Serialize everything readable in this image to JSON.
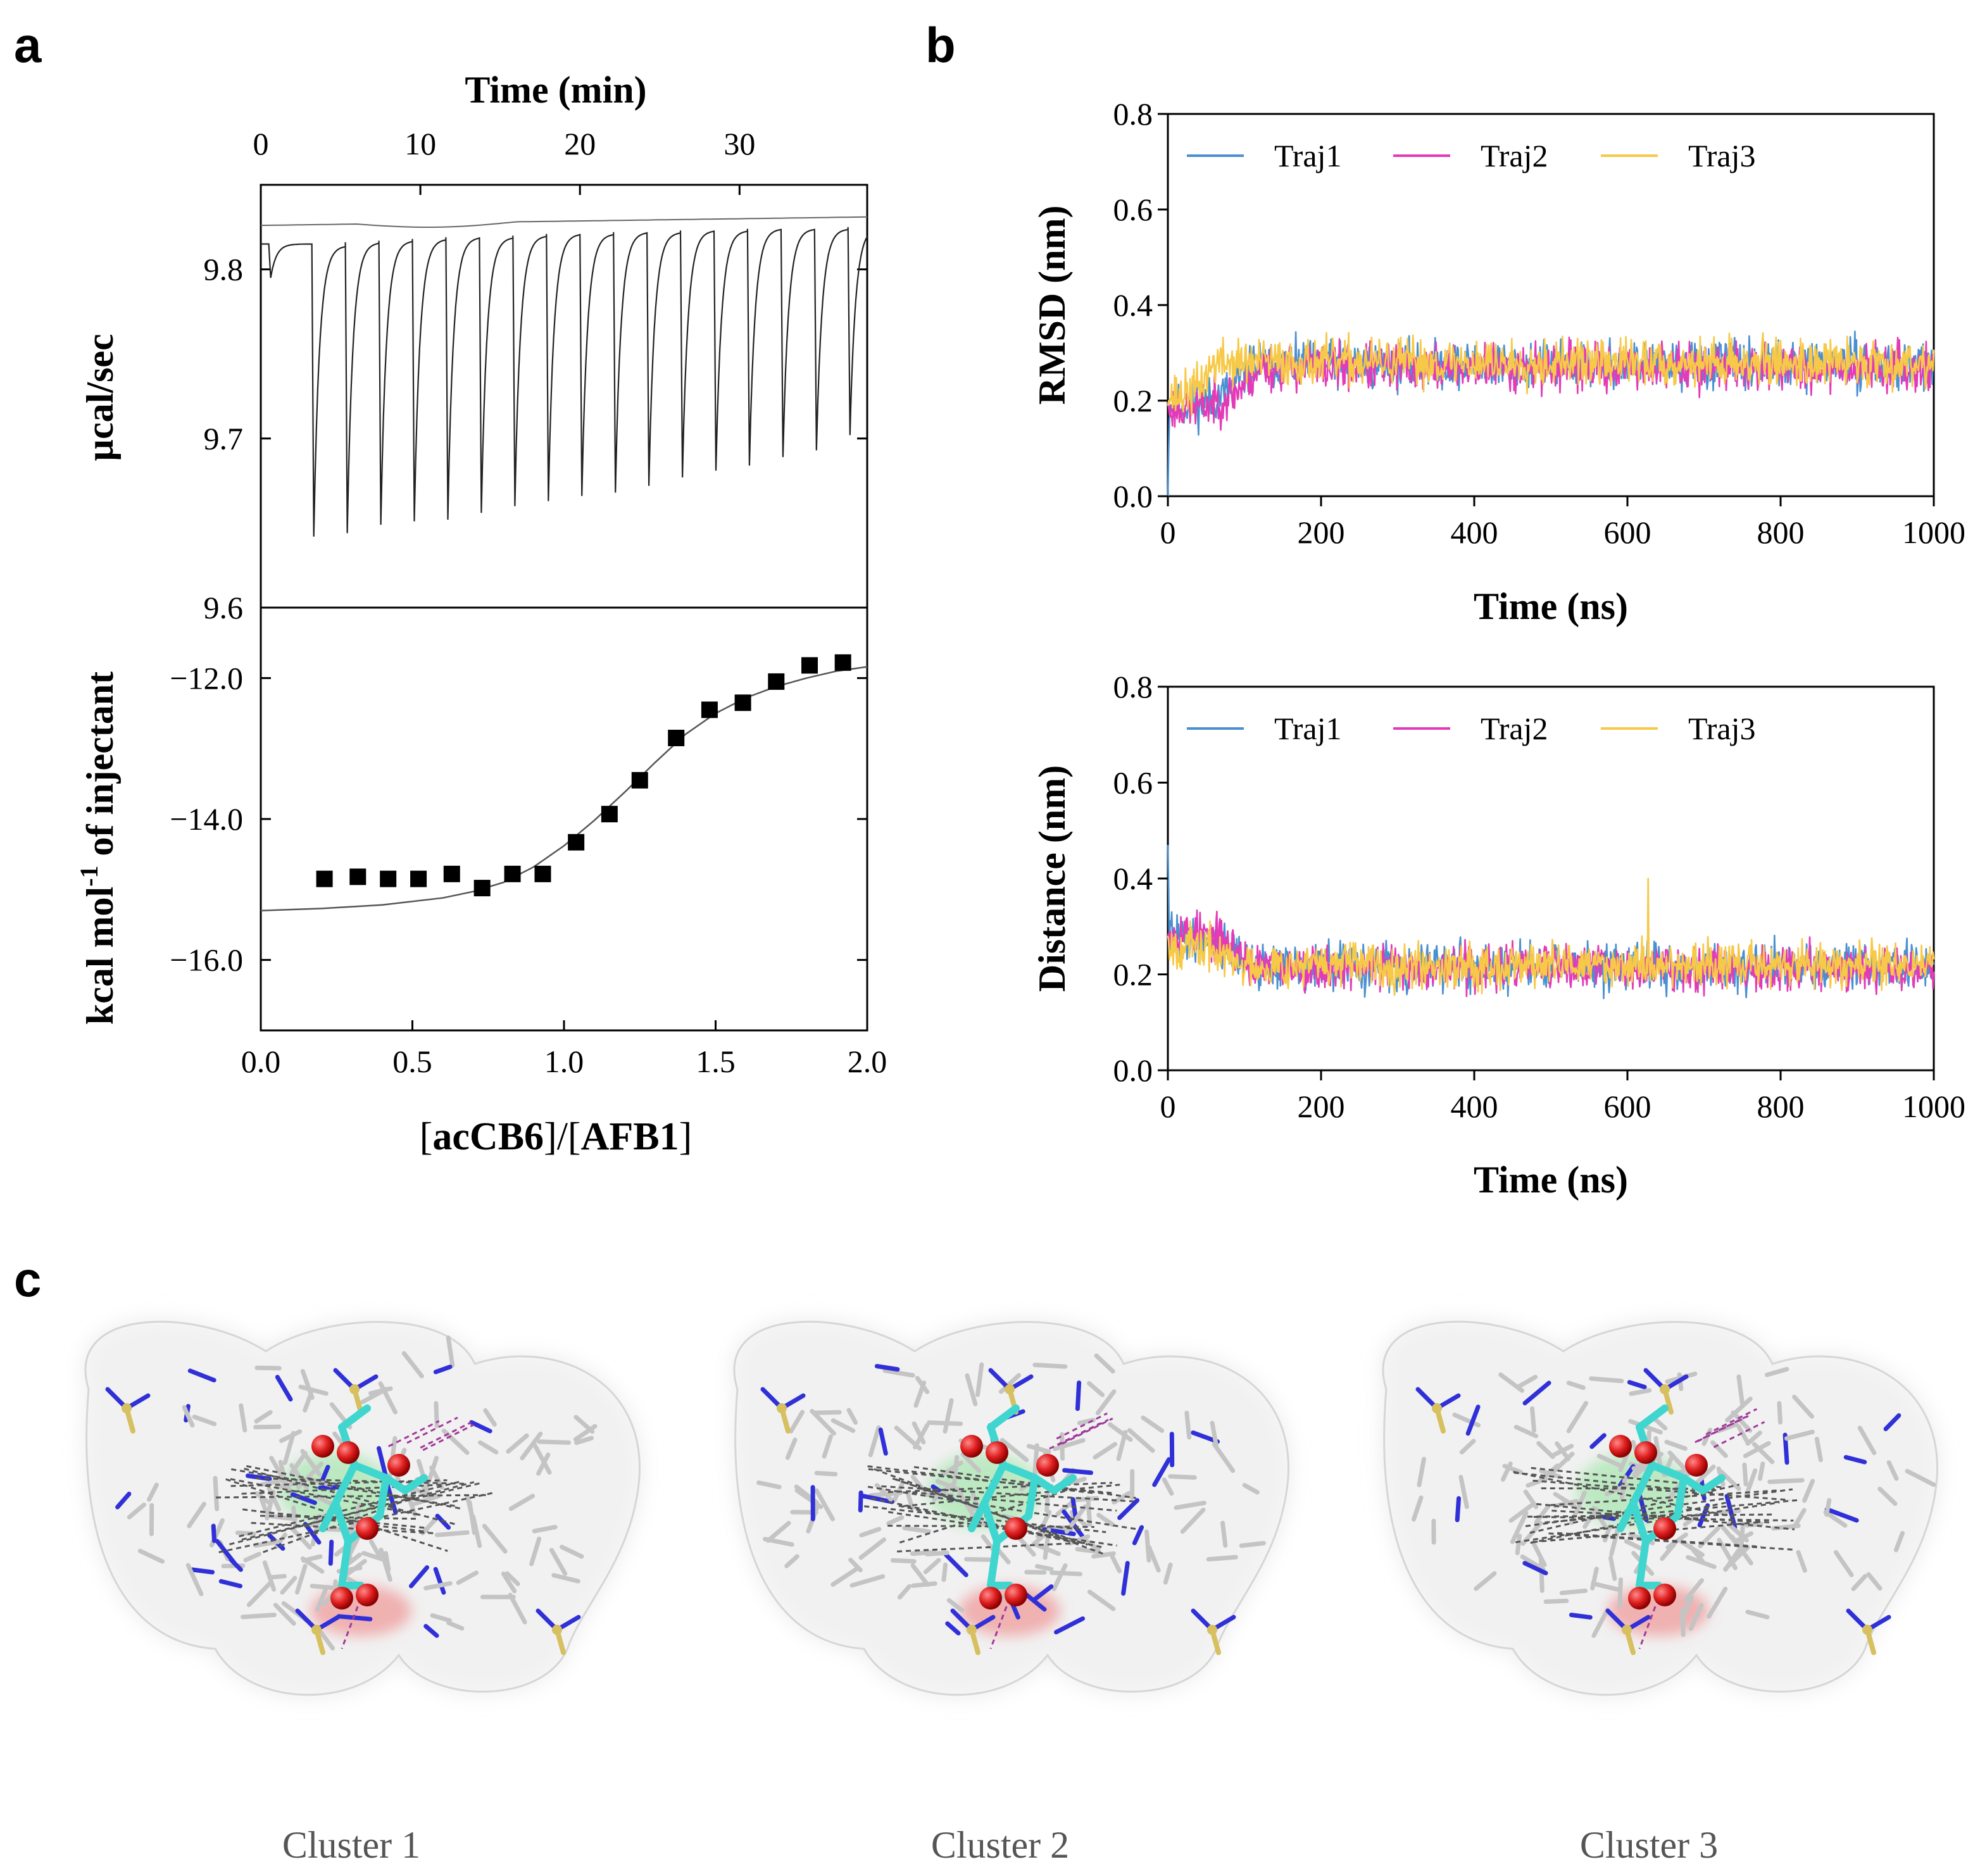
{
  "panels": {
    "a": "a",
    "b": "b",
    "c": "c"
  },
  "chart_data": [
    {
      "id": "itc-raw",
      "type": "line",
      "title": "",
      "xlabel": "Time (min)",
      "ylabel": "µcal/sec",
      "xlim": [
        0,
        38
      ],
      "ylim": [
        9.6,
        9.85
      ],
      "xticks": [
        0,
        10,
        20,
        30
      ],
      "yticks": [
        9.6,
        9.7,
        9.8
      ],
      "baseline": {
        "start": 9.826,
        "end": 9.831
      },
      "injections": {
        "times": [
          0.5,
          3.2,
          5.3,
          7.4,
          9.5,
          11.6,
          13.7,
          15.8,
          17.9,
          20.0,
          22.1,
          24.2,
          26.3,
          28.4,
          30.5,
          32.6,
          34.7,
          36.8
        ],
        "peak_min": [
          9.795,
          9.642,
          9.644,
          9.649,
          9.651,
          9.652,
          9.656,
          9.66,
          9.663,
          9.666,
          9.668,
          9.672,
          9.677,
          9.681,
          9.684,
          9.689,
          9.693,
          9.702
        ],
        "pre_level": [
          9.815,
          9.814,
          9.816,
          9.817,
          9.818,
          9.819,
          9.819,
          9.82,
          9.821,
          9.821,
          9.822,
          9.822,
          9.823,
          9.823,
          9.824,
          9.824,
          9.824,
          9.825
        ]
      }
    },
    {
      "id": "itc-integrated",
      "type": "scatter",
      "title": "",
      "xlabel_parts": [
        "[",
        "acCB6",
        "]/[",
        "AFB1",
        "]"
      ],
      "ylabel_parts": [
        "kcal mol",
        "-1",
        " of injectant"
      ],
      "xlim": [
        0.0,
        2.0
      ],
      "ylim": [
        -17.0,
        -11.0
      ],
      "xticks": [
        "0.0",
        "0.5",
        "1.0",
        "1.5",
        "2.0"
      ],
      "yticks": [
        "−12.0",
        "−14.0",
        "−16.0"
      ],
      "ytick_values": [
        -12.0,
        -14.0,
        -16.0
      ],
      "x": [
        0.21,
        0.32,
        0.42,
        0.52,
        0.63,
        0.73,
        0.83,
        0.93,
        1.04,
        1.15,
        1.25,
        1.37,
        1.48,
        1.59,
        1.7,
        1.81,
        1.92
      ],
      "y": [
        -14.85,
        -14.82,
        -14.85,
        -14.85,
        -14.78,
        -14.98,
        -14.78,
        -14.78,
        -14.33,
        -13.93,
        -13.45,
        -12.85,
        -12.45,
        -12.35,
        -12.05,
        -11.82,
        -11.78
      ],
      "fit": {
        "x": [
          0.0,
          0.2,
          0.4,
          0.6,
          0.7,
          0.8,
          0.9,
          1.0,
          1.1,
          1.2,
          1.3,
          1.4,
          1.5,
          1.6,
          1.7,
          1.8,
          1.9,
          2.0
        ],
        "y": [
          -15.3,
          -15.27,
          -15.22,
          -15.12,
          -15.03,
          -14.9,
          -14.68,
          -14.38,
          -14.02,
          -13.62,
          -13.2,
          -12.8,
          -12.5,
          -12.28,
          -12.12,
          -12.0,
          -11.9,
          -11.84
        ]
      }
    },
    {
      "id": "rmsd",
      "type": "line",
      "title": "",
      "xlabel": "Time (ns)",
      "ylabel": "RMSD (nm)",
      "xlim": [
        0,
        1000
      ],
      "ylim": [
        0.0,
        0.8
      ],
      "xticks": [
        0,
        200,
        400,
        600,
        800,
        1000
      ],
      "yticks": [
        "0.0",
        "0.2",
        "0.4",
        "0.6",
        "0.8"
      ],
      "ytick_values": [
        0.0,
        0.2,
        0.4,
        0.6,
        0.8
      ],
      "series": [
        {
          "name": "Traj1",
          "color": "#4a90d0",
          "initial": 0.0,
          "early_mean": 0.19,
          "late_mean": 0.275,
          "transition_ns": 110,
          "noise": 0.03,
          "seed": 11
        },
        {
          "name": "Traj2",
          "color": "#e33ab8",
          "initial": 0.19,
          "early_mean": 0.185,
          "late_mean": 0.27,
          "transition_ns": 120,
          "noise": 0.03,
          "seed": 23
        },
        {
          "name": "Traj3",
          "color": "#f7c948",
          "initial": 0.19,
          "early_mean": 0.21,
          "late_mean": 0.28,
          "transition_ns": 60,
          "noise": 0.03,
          "seed": 37
        }
      ],
      "legend": [
        "Traj1",
        "Traj2",
        "Traj3"
      ],
      "legend_position": "top"
    },
    {
      "id": "distance",
      "type": "line",
      "title": "",
      "xlabel": "Time (ns)",
      "ylabel": "Distance (nm)",
      "xlim": [
        0,
        1000
      ],
      "ylim": [
        0.0,
        0.8
      ],
      "xticks": [
        0,
        200,
        400,
        600,
        800,
        1000
      ],
      "yticks": [
        "0.0",
        "0.2",
        "0.4",
        "0.6",
        "0.8"
      ],
      "ytick_values": [
        0.0,
        0.2,
        0.4,
        0.6,
        0.8
      ],
      "series": [
        {
          "name": "Traj1",
          "color": "#4a90d0",
          "initial": 0.47,
          "early_mean": 0.28,
          "late_mean": 0.215,
          "transition_ns": 110,
          "noise": 0.03,
          "seed": 41
        },
        {
          "name": "Traj2",
          "color": "#e33ab8",
          "initial": 0.28,
          "early_mean": 0.29,
          "late_mean": 0.215,
          "transition_ns": 110,
          "noise": 0.028,
          "seed": 53
        },
        {
          "name": "Traj3",
          "color": "#f7c948",
          "initial": 0.28,
          "early_mean": 0.26,
          "late_mean": 0.22,
          "transition_ns": 90,
          "noise": 0.028,
          "seed": 67,
          "spike_ns": 627,
          "spike_value": 0.4
        }
      ],
      "legend": [
        "Traj1",
        "Traj2",
        "Traj3"
      ],
      "legend_position": "top"
    }
  ],
  "clusters": [
    "Cluster 1",
    "Cluster 2",
    "Cluster 3"
  ],
  "colors": {
    "ligand": "#3fd6cf",
    "host": "#c4c4c4",
    "oxygen": "#e02020",
    "nitrogen": "#3030d8",
    "sulfur": "#d6c060",
    "surface": "#e6e6e6"
  }
}
